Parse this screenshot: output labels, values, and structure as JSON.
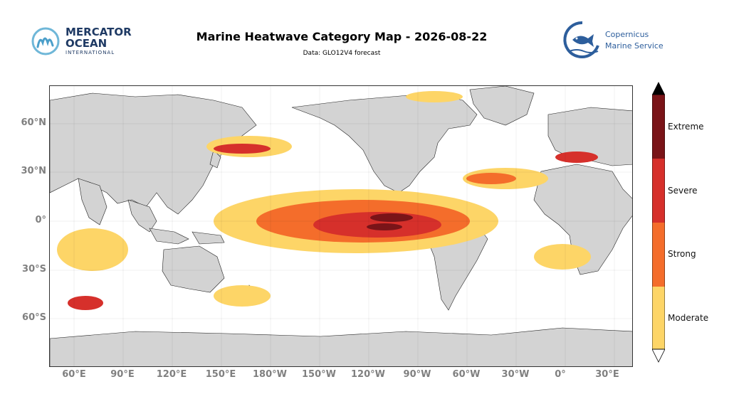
{
  "header": {
    "title": "Marine Heatwave Category Map - 2026-08-22",
    "subtitle": "Data: GLO12V4 forecast"
  },
  "logos": {
    "mercator": {
      "line1": "MERCATOR",
      "line2": "OCEAN",
      "line3": "INTERNATIONAL"
    },
    "copernicus": {
      "line1": "Copernicus",
      "line2": "Marine Service"
    }
  },
  "map": {
    "lat_ticks": [
      "60°N",
      "30°N",
      "0°",
      "30°S",
      "60°S"
    ],
    "lon_ticks": [
      "60°E",
      "90°E",
      "120°E",
      "150°E",
      "180°W",
      "150°W",
      "120°W",
      "90°W",
      "60°W",
      "30°W",
      "0°",
      "30°E"
    ]
  },
  "colorbar": {
    "categories": [
      "Extreme",
      "Severe",
      "Strong",
      "Moderate"
    ],
    "colors": {
      "Moderate": "#fdd567",
      "Strong": "#f46d2b",
      "Severe": "#d6302b",
      "Extreme": "#7a1418"
    }
  },
  "colors": {
    "land": "#d3d3d3",
    "ocean": "#ffffff",
    "tick_text": "#808080"
  }
}
